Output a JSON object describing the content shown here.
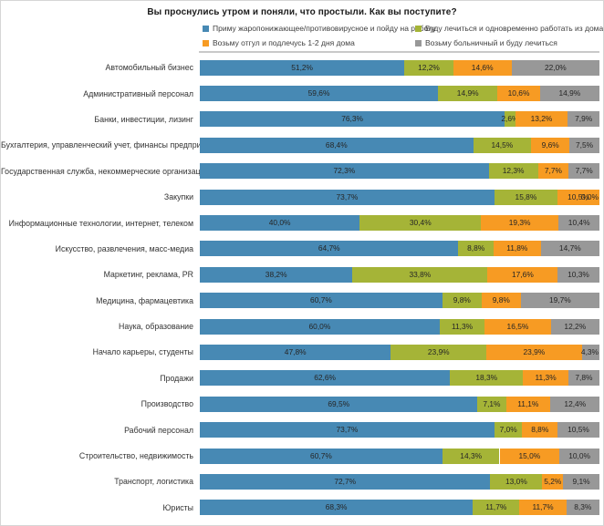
{
  "page": {
    "background": "#ffffff",
    "border_color": "#d6d6d6"
  },
  "chart_data": {
    "type": "bar",
    "orientation": "horizontal",
    "stacked": true,
    "title": "Вы проснулись утром и поняли, что простыли. Как вы поступите?",
    "xlim": [
      0,
      100
    ],
    "grid": false,
    "legend_position": "top",
    "value_label_format": "percent-comma-decimal",
    "categories": [
      "Автомобильный бизнес",
      "Административный персонал",
      "Банки, инвестиции, лизинг",
      "Бухгалтерия, управленческий учет, финансы предприятия",
      "Государственная служба, некоммерческие организации",
      "Закупки",
      "Информационные технологии, интернет, телеком",
      "Искусство, развлечения, масс-медиа",
      "Маркетинг, реклама, PR",
      "Медицина, фармацевтика",
      "Наука, образование",
      "Начало карьеры, студенты",
      "Продажи",
      "Производство",
      "Рабочий персонал",
      "Строительство, недвижимость",
      "Транспорт, логистика",
      "Юристы"
    ],
    "series": [
      {
        "name": "Приму жаропонижающее/противовирусное и пойду на работу",
        "color": "#4789B4",
        "values": [
          51.2,
          59.6,
          76.3,
          68.4,
          72.3,
          73.7,
          40.0,
          64.7,
          38.2,
          60.7,
          60.0,
          47.8,
          62.6,
          69.5,
          73.7,
          60.7,
          72.7,
          68.3
        ]
      },
      {
        "name": "Буду лечиться и одновременно работать из дома",
        "color": "#A5B437",
        "values": [
          12.2,
          14.9,
          2.6,
          14.5,
          12.3,
          15.8,
          30.4,
          8.8,
          33.8,
          9.8,
          11.3,
          23.9,
          18.3,
          7.1,
          7.0,
          14.3,
          13.0,
          11.7
        ]
      },
      {
        "name": "Возьму отгул и подлечусь 1-2 дня дома",
        "color": "#F79B23",
        "values": [
          14.6,
          10.6,
          13.2,
          9.6,
          7.7,
          10.5,
          19.3,
          11.8,
          17.6,
          9.8,
          16.5,
          23.9,
          11.3,
          11.1,
          8.8,
          15.0,
          5.2,
          11.7
        ]
      },
      {
        "name": "Возьму больничный и буду лечиться",
        "color": "#989898",
        "values": [
          22.0,
          14.9,
          7.9,
          7.5,
          7.7,
          0.0,
          10.4,
          14.7,
          10.3,
          19.7,
          12.2,
          4.3,
          7.8,
          12.4,
          10.5,
          10.0,
          9.1,
          8.3
        ]
      }
    ]
  }
}
